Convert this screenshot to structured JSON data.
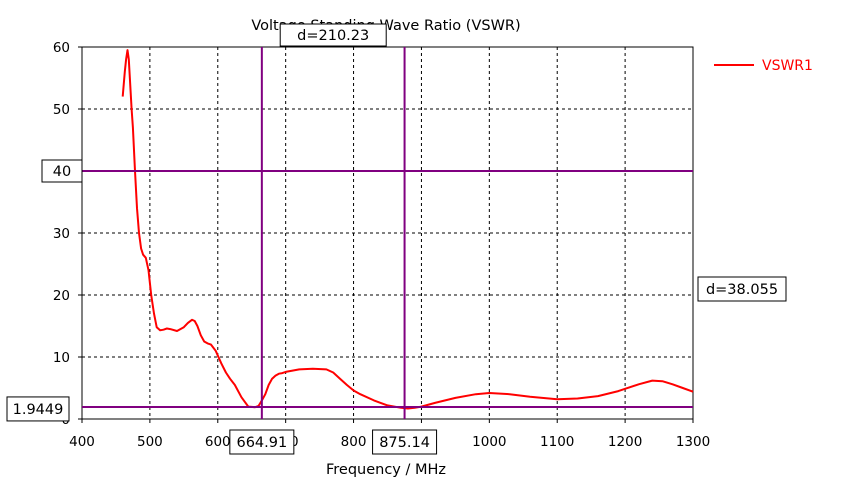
{
  "chart_data": {
    "type": "line",
    "title": "Voltage Standing Wave Ratio (VSWR)",
    "xlabel": "Frequency / MHz",
    "ylabel": "",
    "xlim": [
      400,
      1300
    ],
    "ylim": [
      0,
      60
    ],
    "xticks": [
      400,
      500,
      600,
      700,
      800,
      900,
      1000,
      1100,
      1200,
      1300
    ],
    "xtick_labels": [
      "400",
      "500",
      "600",
      "700",
      "800",
      "900",
      "1000",
      "1100",
      "1200",
      "1300"
    ],
    "yticks": [
      0,
      10,
      20,
      30,
      40,
      50,
      60
    ],
    "ytick_labels": [
      "0",
      "10",
      "20",
      "30",
      "40",
      "50",
      "60"
    ],
    "grid": true,
    "grid_style": "dashed",
    "legend_position": "top-right",
    "series": [
      {
        "name": "VSWR1",
        "color": "#ff0000",
        "x": [
          460,
          463,
          465,
          467,
          469,
          471,
          473,
          475,
          478,
          481,
          484,
          487,
          490,
          494,
          498,
          502,
          506,
          510,
          515,
          520,
          525,
          530,
          540,
          550,
          556,
          562,
          566,
          570,
          575,
          580,
          585,
          590,
          597,
          605,
          612,
          618,
          625,
          635,
          645,
          655,
          660,
          665,
          670,
          675,
          680,
          685,
          690,
          695,
          700,
          710,
          720,
          740,
          760,
          770,
          780,
          790,
          800,
          810,
          830,
          850,
          870,
          880,
          890,
          900,
          920,
          950,
          980,
          1000,
          1030,
          1060,
          1100,
          1130,
          1160,
          1190,
          1220,
          1240,
          1255,
          1270,
          1285,
          1300
        ],
        "values": [
          52,
          56,
          58,
          59.5,
          58,
          54,
          50,
          47,
          40,
          34,
          30,
          27.5,
          26.5,
          26,
          24,
          20,
          17,
          14.8,
          14.3,
          14.4,
          14.6,
          14.5,
          14.2,
          14.8,
          15.5,
          16,
          15.8,
          15,
          13.5,
          12.5,
          12.2,
          12,
          11,
          9,
          7.5,
          6.5,
          5.5,
          3.5,
          2.0,
          1.9,
          2.1,
          3,
          4,
          5.5,
          6.5,
          7,
          7.3,
          7.4,
          7.6,
          7.8,
          8.0,
          8.1,
          8.0,
          7.5,
          6.5,
          5.5,
          4.6,
          4.0,
          3.0,
          2.2,
          1.8,
          1.7,
          1.8,
          2.0,
          2.6,
          3.4,
          4.0,
          4.2,
          4.0,
          3.6,
          3.2,
          3.3,
          3.7,
          4.5,
          5.6,
          6.2,
          6.1,
          5.6,
          5.0,
          4.4
        ]
      }
    ],
    "markers": {
      "vertical": [
        {
          "x": 664.91,
          "label": "664.91"
        },
        {
          "x": 875.14,
          "label": "875.14"
        }
      ],
      "horizontal": [
        {
          "y": 40,
          "label": "40"
        },
        {
          "y": 1.9449,
          "label": "1.9449"
        }
      ],
      "delta_x_label": "d=210.23",
      "delta_y_label": "d=38.055",
      "line_color": "#800080"
    }
  }
}
